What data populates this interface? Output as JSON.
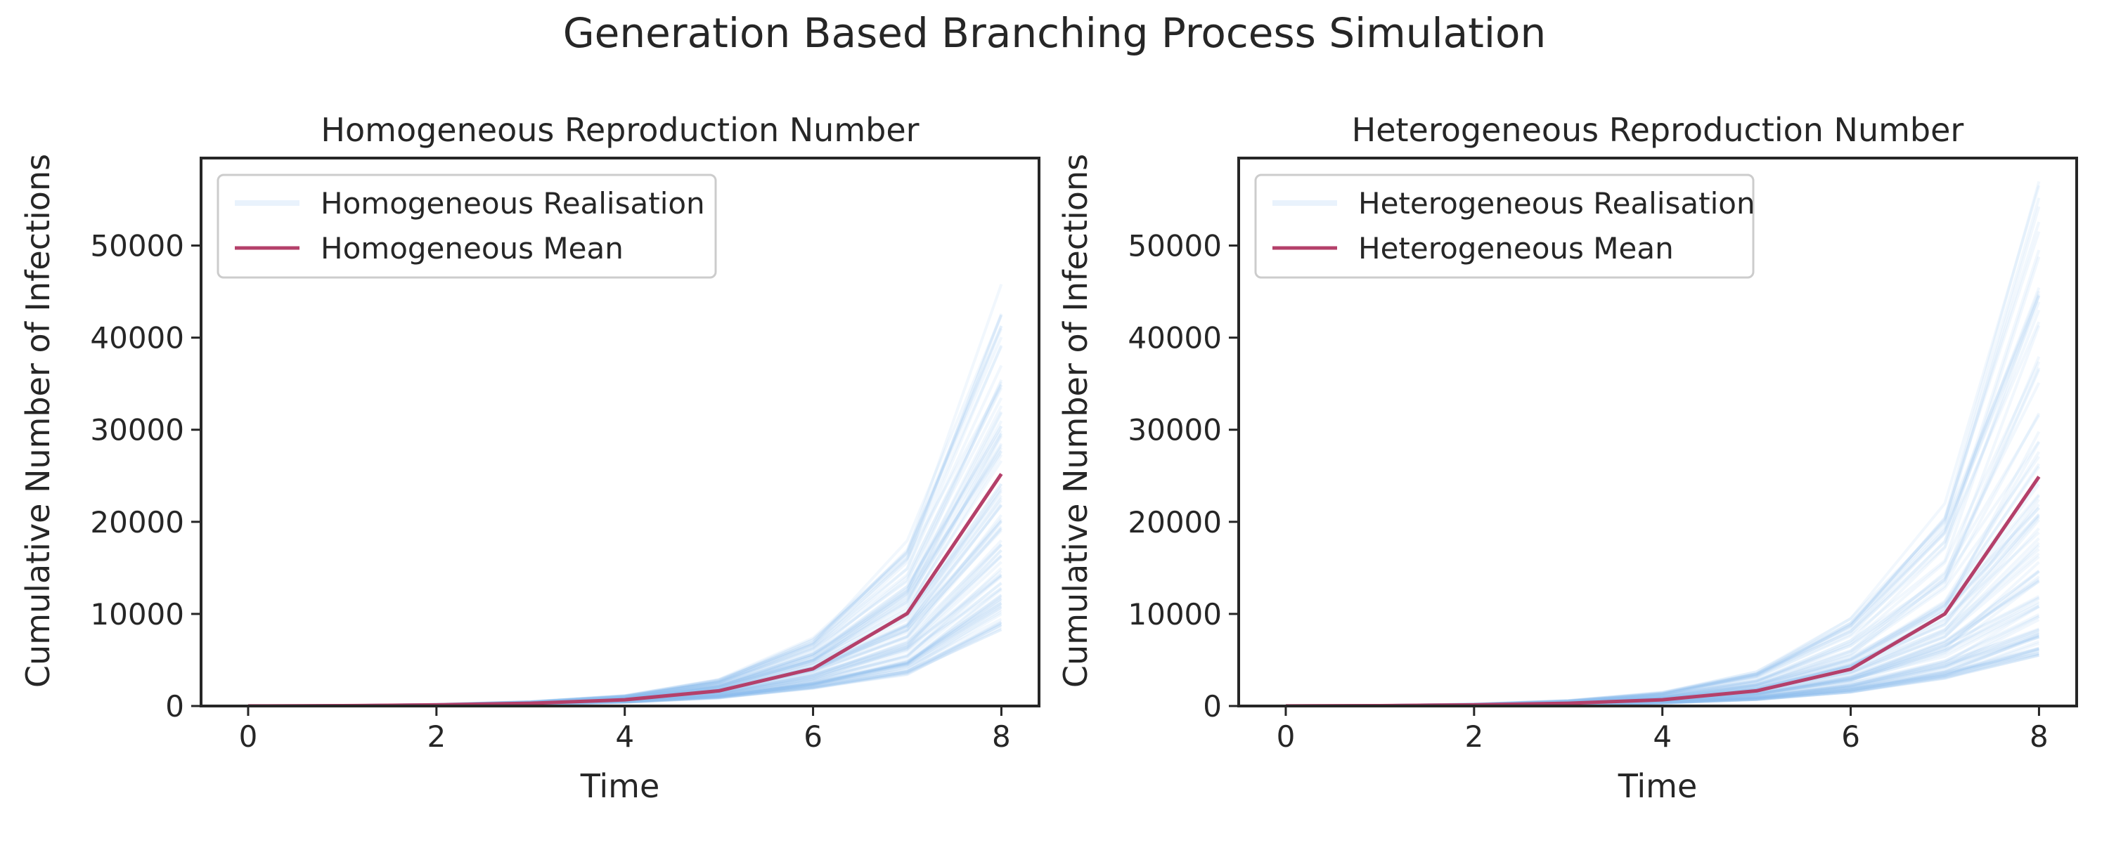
{
  "figure": {
    "suptitle": "Generation Based Branching Process Simulation"
  },
  "colors": {
    "realisation": "#8fbcee",
    "mean": "#b4406a",
    "axes": "#262626",
    "legend_border": "#cccccc"
  },
  "chart_data": [
    {
      "type": "line",
      "title": "Homogeneous Reproduction Number",
      "xlabel": "Time",
      "ylabel": "Cumulative Number of Infections",
      "xlim": [
        -0.5,
        8.4
      ],
      "ylim": [
        0,
        59500
      ],
      "xticks": [
        0,
        2,
        4,
        6,
        8
      ],
      "yticks": [
        0,
        10000,
        20000,
        30000,
        40000,
        50000
      ],
      "legend": {
        "placement": "upper left",
        "entries": [
          "Homogeneous Realisation",
          "Homogeneous Mean"
        ]
      },
      "x": [
        0,
        1,
        2,
        3,
        4,
        5,
        6,
        7,
        8
      ],
      "mean": {
        "name": "Homogeneous Mean",
        "values": [
          10,
          40,
          120,
          300,
          680,
          1650,
          4050,
          10050,
          25200
        ]
      },
      "realisations": {
        "name": "Homogeneous Realisation",
        "count": 100,
        "envelope_low": [
          10,
          30,
          80,
          190,
          400,
          880,
          1900,
          3400,
          8300
        ],
        "envelope_high": [
          10,
          55,
          170,
          480,
          1150,
          2900,
          7400,
          18000,
          45800
        ]
      }
    },
    {
      "type": "line",
      "title": "Heterogeneous Reproduction Number",
      "xlabel": "Time",
      "ylabel": "Cumulative Number of Infections",
      "xlim": [
        -0.5,
        8.4
      ],
      "ylim": [
        0,
        59500
      ],
      "xticks": [
        0,
        2,
        4,
        6,
        8
      ],
      "yticks": [
        0,
        10000,
        20000,
        30000,
        40000,
        50000
      ],
      "legend": {
        "placement": "upper left",
        "entries": [
          "Heterogeneous Realisation",
          "Heterogeneous Mean"
        ]
      },
      "x": [
        0,
        1,
        2,
        3,
        4,
        5,
        6,
        7,
        8
      ],
      "mean": {
        "name": "Heterogeneous Mean",
        "values": [
          10,
          40,
          120,
          300,
          680,
          1650,
          4000,
          10000,
          24900
        ]
      },
      "realisations": {
        "name": "Heterogeneous Realisation",
        "count": 100,
        "envelope_low": [
          10,
          25,
          60,
          150,
          320,
          700,
          1500,
          3000,
          5500
        ],
        "envelope_high": [
          10,
          65,
          210,
          600,
          1500,
          3800,
          9500,
          22000,
          59000
        ]
      }
    }
  ]
}
